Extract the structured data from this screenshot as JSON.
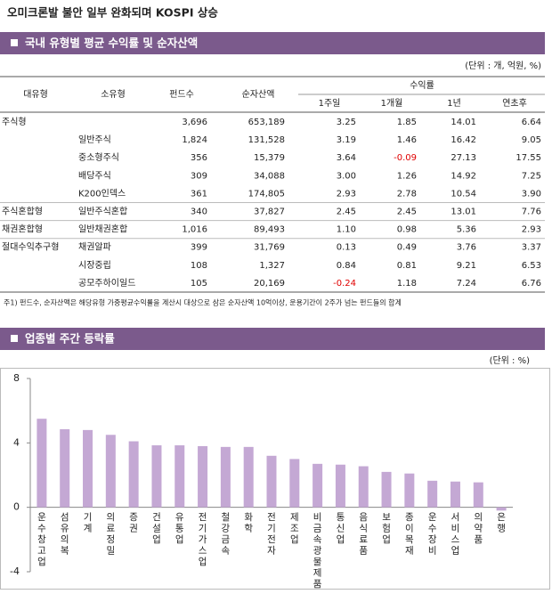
{
  "title": "오미크론발 불안 일부 완화되며 KOSPI 상승",
  "table_section": {
    "heading": "국내 유형별 평균 수익률 및 순자산액",
    "unit": "(단위 : 개, 억원, %)",
    "columns": [
      "대유형",
      "소유형",
      "펀드수",
      "순자산액"
    ],
    "return_group": "수익률",
    "return_columns": [
      "1주일",
      "1개월",
      "1년",
      "연초후"
    ],
    "rows": [
      {
        "group": "주식형",
        "cells": [
          "3,696",
          "653,189",
          "3.25",
          "1.85",
          "14.01",
          "6.64"
        ]
      },
      {
        "sub": "일반주식",
        "cells": [
          "1,824",
          "131,528",
          "3.19",
          "1.46",
          "16.42",
          "9.05"
        ]
      },
      {
        "sub": "중소형주식",
        "cells": [
          "356",
          "15,379",
          "3.64",
          "-0.09",
          "27.13",
          "17.55"
        ]
      },
      {
        "sub": "배당주식",
        "cells": [
          "309",
          "34,088",
          "3.00",
          "1.26",
          "14.92",
          "7.25"
        ]
      },
      {
        "sub": "K200인덱스",
        "cells": [
          "361",
          "174,805",
          "2.93",
          "2.78",
          "10.54",
          "3.90"
        ]
      },
      {
        "group": "주식혼합형",
        "sub": "일반주식혼합",
        "cells": [
          "340",
          "37,827",
          "2.45",
          "2.45",
          "13.01",
          "7.76"
        ]
      },
      {
        "group": "채권혼합형",
        "sub": "일반채권혼합",
        "cells": [
          "1,016",
          "89,493",
          "1.10",
          "0.98",
          "5.36",
          "2.93"
        ]
      },
      {
        "group": "절대수익추구형",
        "sub": "채권알파",
        "cells": [
          "399",
          "31,769",
          "0.13",
          "0.49",
          "3.76",
          "3.37"
        ]
      },
      {
        "sub": "시장중립",
        "cells": [
          "108",
          "1,327",
          "0.84",
          "0.81",
          "9.21",
          "6.53"
        ]
      },
      {
        "sub": "공모주하이일드",
        "cells": [
          "105",
          "20,169",
          "-0.24",
          "1.18",
          "7.24",
          "6.76"
        ]
      }
    ],
    "footnote": "주1) 펀드수, 순자산액은 해당유형 가중평균수익률을 계산시 대상으로 삼은 순자산액 10억이상, 운용기간이 2주가 넘는 펀드들의 합계"
  },
  "chart_section": {
    "heading": "업종별 주간 등락률",
    "unit": "(단위 : %)"
  },
  "chart_data": {
    "type": "bar",
    "categories": [
      "운수창고업",
      "섬유의복",
      "기계",
      "의료정밀",
      "증권",
      "건설업",
      "유통업",
      "전기가스업",
      "철강금속",
      "화학",
      "전기전자",
      "제조업",
      "비금속광물제품",
      "통신업",
      "음식료품",
      "보험업",
      "종이목재",
      "운수장비",
      "서비스업",
      "의약품",
      "은행"
    ],
    "values": [
      5.5,
      4.85,
      4.8,
      4.5,
      4.1,
      3.85,
      3.85,
      3.8,
      3.75,
      3.75,
      3.2,
      3.0,
      2.7,
      2.65,
      2.55,
      2.2,
      2.1,
      1.65,
      1.6,
      1.55,
      -0.2
    ],
    "color": "#c4a8d4",
    "ylim": [
      -4,
      8
    ],
    "yticks": [
      -4,
      0,
      4,
      8
    ]
  }
}
